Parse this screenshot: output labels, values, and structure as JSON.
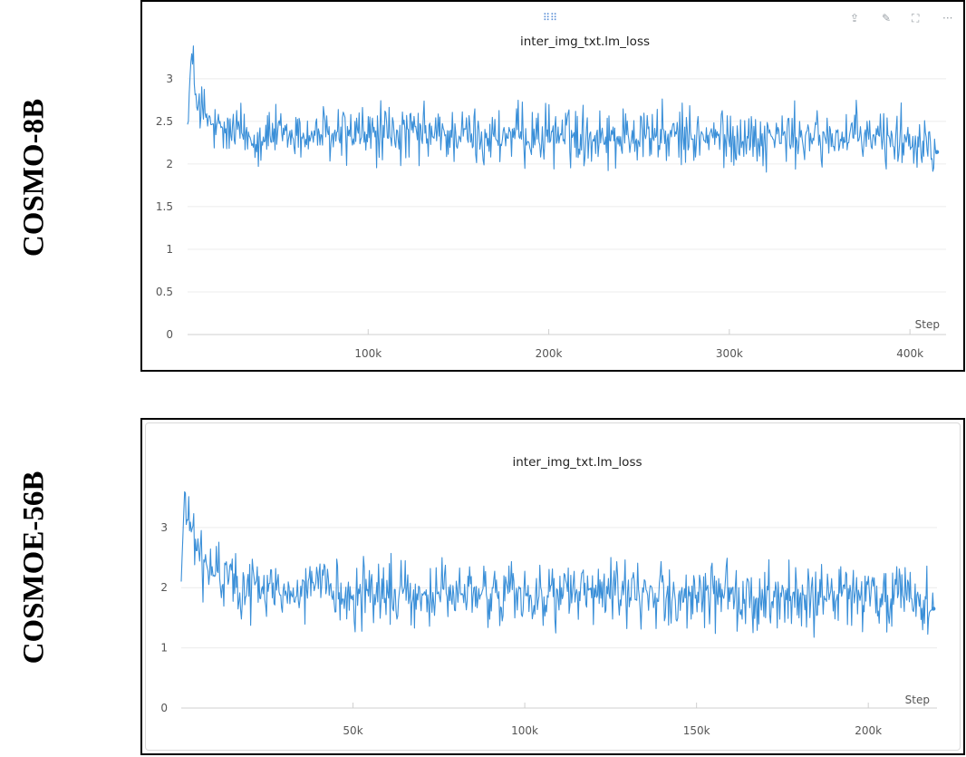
{
  "row_labels": [
    "COSMO-8B",
    "COSMOE-56B"
  ],
  "toolbar": {
    "drag_handle_icon": "drag-handle-icon",
    "share_icon": "share-icon",
    "edit_icon": "pencil-icon",
    "fullscreen_icon": "fullscreen-icon",
    "more_icon": "more-icon"
  },
  "colors": {
    "line": "#3a8fd8",
    "grid": "#ececec",
    "axis": "#cfcfcf"
  },
  "chart_data": [
    {
      "type": "line",
      "title": "inter_img_txt.lm_loss",
      "xlabel": "Step",
      "ylabel": "",
      "xlim": [
        0,
        420000
      ],
      "ylim": [
        0,
        3.2
      ],
      "x_ticks": [
        100000,
        200000,
        300000,
        400000
      ],
      "x_tick_labels": [
        "100k",
        "200k",
        "300k",
        "400k"
      ],
      "y_ticks": [
        0,
        0.5,
        1,
        1.5,
        2,
        2.5,
        3
      ],
      "y_tick_labels": [
        "0",
        "0.5",
        "1",
        "1.5",
        "2",
        "2.5",
        "3"
      ],
      "grid": true,
      "series": [
        {
          "x": [
            0,
            2000,
            4000,
            8000,
            15000,
            25000,
            40000,
            60000,
            80000,
            100000,
            120000,
            140000,
            160000,
            180000,
            200000,
            220000,
            240000,
            250000,
            260000,
            280000,
            300000,
            320000,
            340000,
            360000,
            380000,
            400000,
            410000,
            415000
          ],
          "y": [
            2.45,
            3.2,
            2.9,
            2.6,
            2.4,
            2.35,
            2.33,
            2.32,
            2.33,
            2.34,
            2.35,
            2.34,
            2.33,
            2.32,
            2.33,
            2.34,
            2.33,
            2.36,
            2.33,
            2.32,
            2.31,
            2.32,
            2.3,
            2.31,
            2.3,
            2.31,
            2.3,
            2.14
          ],
          "noise_band": [
            1.78,
            3.0
          ]
        }
      ]
    },
    {
      "type": "line",
      "title": "inter_img_txt.lm_loss",
      "xlabel": "Step",
      "ylabel": "",
      "xlim": [
        0,
        220000
      ],
      "ylim": [
        0,
        3.6
      ],
      "x_ticks": [
        50000,
        100000,
        150000,
        200000
      ],
      "x_tick_labels": [
        "50k",
        "100k",
        "150k",
        "200k"
      ],
      "y_ticks": [
        0,
        1,
        2,
        3
      ],
      "y_tick_labels": [
        "0",
        "1",
        "2",
        "3"
      ],
      "grid": true,
      "series": [
        {
          "x": [
            0,
            1000,
            3000,
            6000,
            10000,
            20000,
            40000,
            60000,
            80000,
            100000,
            120000,
            140000,
            160000,
            180000,
            200000,
            215000,
            219000
          ],
          "y": [
            2.1,
            3.55,
            2.9,
            2.4,
            2.2,
            2.0,
            1.95,
            1.9,
            1.88,
            1.9,
            1.88,
            1.86,
            1.85,
            1.84,
            1.83,
            1.8,
            1.65
          ],
          "noise_band": [
            1.15,
            2.95
          ]
        }
      ]
    }
  ]
}
